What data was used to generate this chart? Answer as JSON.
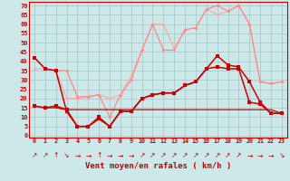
{
  "x": [
    0,
    1,
    2,
    3,
    4,
    5,
    6,
    7,
    8,
    9,
    10,
    11,
    12,
    13,
    14,
    15,
    16,
    17,
    18,
    19,
    20,
    21,
    22,
    23
  ],
  "line_dark1": [
    42,
    36,
    35,
    13,
    5,
    5,
    10,
    5,
    13,
    13,
    20,
    22,
    23,
    23,
    27,
    29,
    36,
    43,
    38,
    37,
    29,
    18,
    12,
    12
  ],
  "line_dark2": [
    16,
    15,
    16,
    14,
    5,
    5,
    9,
    5,
    13,
    13,
    20,
    22,
    23,
    23,
    27,
    29,
    36,
    37,
    36,
    36,
    18,
    17,
    12,
    12
  ],
  "line_flat": [
    16,
    15,
    15,
    14,
    14,
    14,
    14,
    14,
    14,
    14,
    14,
    14,
    14,
    14,
    14,
    14,
    14,
    14,
    14,
    14,
    14,
    14,
    14,
    12
  ],
  "line_pink1": [
    42,
    36,
    35,
    35,
    21,
    21,
    22,
    10,
    22,
    30,
    46,
    60,
    46,
    46,
    57,
    58,
    68,
    70,
    67,
    70,
    60,
    29,
    28,
    29
  ],
  "line_pink2": [
    36,
    36,
    35,
    20,
    20,
    21,
    22,
    20,
    22,
    32,
    46,
    60,
    60,
    47,
    57,
    58,
    68,
    65,
    67,
    70,
    60,
    29,
    28,
    29
  ],
  "bg_color": "#cce8e8",
  "grid_color": "#aacccc",
  "dark_color": "#cc0000",
  "pink1_color": "#ff8888",
  "pink2_color": "#ffaaaa",
  "yticks": [
    0,
    5,
    10,
    15,
    20,
    25,
    30,
    35,
    40,
    45,
    50,
    55,
    60,
    65,
    70
  ],
  "ylim": [
    -1,
    72
  ],
  "xlim": [
    -0.5,
    23.5
  ],
  "xlabel": "Vent moyen/en rafales ( km/h )",
  "arrows": [
    "↗",
    "↗",
    "↑",
    "↘",
    "→",
    "→",
    "↑",
    "→",
    "→",
    "→",
    "↗",
    "↗",
    "↗",
    "↗",
    "↗",
    "↗",
    "↗",
    "↗",
    "↗",
    "↗",
    "→",
    "→",
    "→",
    "↘"
  ]
}
